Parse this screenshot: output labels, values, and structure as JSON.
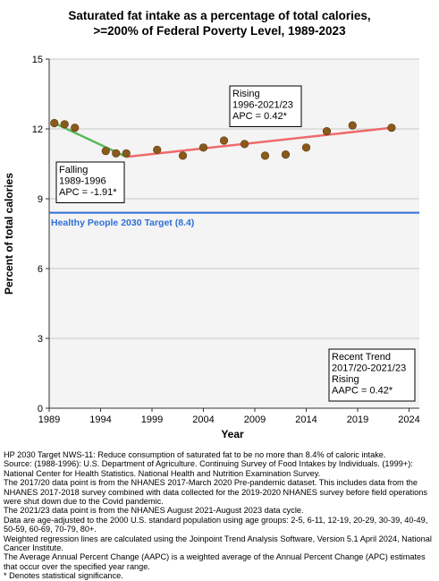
{
  "chart_data": {
    "type": "scatter",
    "title_line1": "Saturated fat intake as a percentage of total calories,",
    "title_line2": ">=200% of Federal Poverty Level,  1989-2023",
    "xlabel": "Year",
    "ylabel": "Percent of total calories",
    "xlim": [
      1989,
      2025
    ],
    "ylim": [
      0,
      15
    ],
    "x_ticks": [
      1989,
      1994,
      1999,
      2004,
      2009,
      2014,
      2019,
      2024
    ],
    "y_ticks": [
      0,
      3,
      6,
      9,
      12,
      15
    ],
    "grid": true,
    "points": [
      {
        "x": 1989.5,
        "y": 12.25
      },
      {
        "x": 1990.5,
        "y": 12.2
      },
      {
        "x": 1991.5,
        "y": 12.05
      },
      {
        "x": 1994.5,
        "y": 11.05
      },
      {
        "x": 1995.5,
        "y": 10.95
      },
      {
        "x": 1996.5,
        "y": 10.95
      },
      {
        "x": 1999.5,
        "y": 11.1
      },
      {
        "x": 2002,
        "y": 10.85
      },
      {
        "x": 2004,
        "y": 11.2
      },
      {
        "x": 2006,
        "y": 11.5
      },
      {
        "x": 2008,
        "y": 11.35
      },
      {
        "x": 2010,
        "y": 10.85
      },
      {
        "x": 2012,
        "y": 10.9
      },
      {
        "x": 2014,
        "y": 11.2
      },
      {
        "x": 2016,
        "y": 11.9
      },
      {
        "x": 2018.5,
        "y": 12.15
      },
      {
        "x": 2022.3,
        "y": 12.05
      }
    ],
    "trend_lines": [
      {
        "name": "Falling 1989-1996",
        "color": "#5cb85c",
        "x": [
          1989.5,
          1996.5
        ],
        "y": [
          12.25,
          10.8
        ]
      },
      {
        "name": "Rising 1996-2021/23",
        "color": "#f06a6a",
        "x": [
          1996.5,
          2022.3
        ],
        "y": [
          10.8,
          12.05
        ]
      }
    ],
    "target": {
      "value": 8.4,
      "color": "#2e6fd6",
      "label": "Healthy People 2030 Target (8.4)"
    },
    "marker_color": "#8a5a1c",
    "annotations": {
      "falling": {
        "lines": [
          "Falling",
          "1989-1996",
          "APC = -1.91*"
        ]
      },
      "rising": {
        "lines": [
          "Rising",
          "1996-2021/23",
          "APC =  0.42*"
        ]
      },
      "recent": {
        "lines": [
          "Recent Trend",
          "2017/20-2021/23",
          "Rising",
          "AAPC =  0.42*"
        ]
      }
    }
  },
  "footnotes": [
    "HP 2030 Target NWS-11: Reduce consumption of saturated fat to be no more than 8.4% of caloric intake.",
    "Source: (1988-1996): U.S. Department of Agriculture. Continuing Survey of Food Intakes by Individuals. (1999+): National Center for Health Statistics. National Health and Nutrition Examination Survey.",
    "The 2017/20 data point is from the NHANES 2017-March 2020 Pre-pandemic dataset. This includes data from the NHANES 2017-2018 survey combined with data collected for the 2019-2020 NHANES survey before field operations were shut down due to the Covid pandemic.",
    "The 2021/23 data point is from the NHANES August 2021-August 2023 data cycle.",
    "Data are age-adjusted to the 2000 U.S. standard population using age groups: 2-5, 6-11, 12-19, 20-29, 30-39, 40-49, 50-59, 60-69, 70-79, 80+.",
    "Weighted regression lines are calculated using the Joinpoint Trend Analysis Software, Version 5.1 April 2024, National Cancer Institute.",
    "The Average Annual Percent Change (AAPC) is a weighted average of the Annual Percent Change (APC) estimates that occur over the specified year range.",
    "* Denotes statistical significance."
  ]
}
